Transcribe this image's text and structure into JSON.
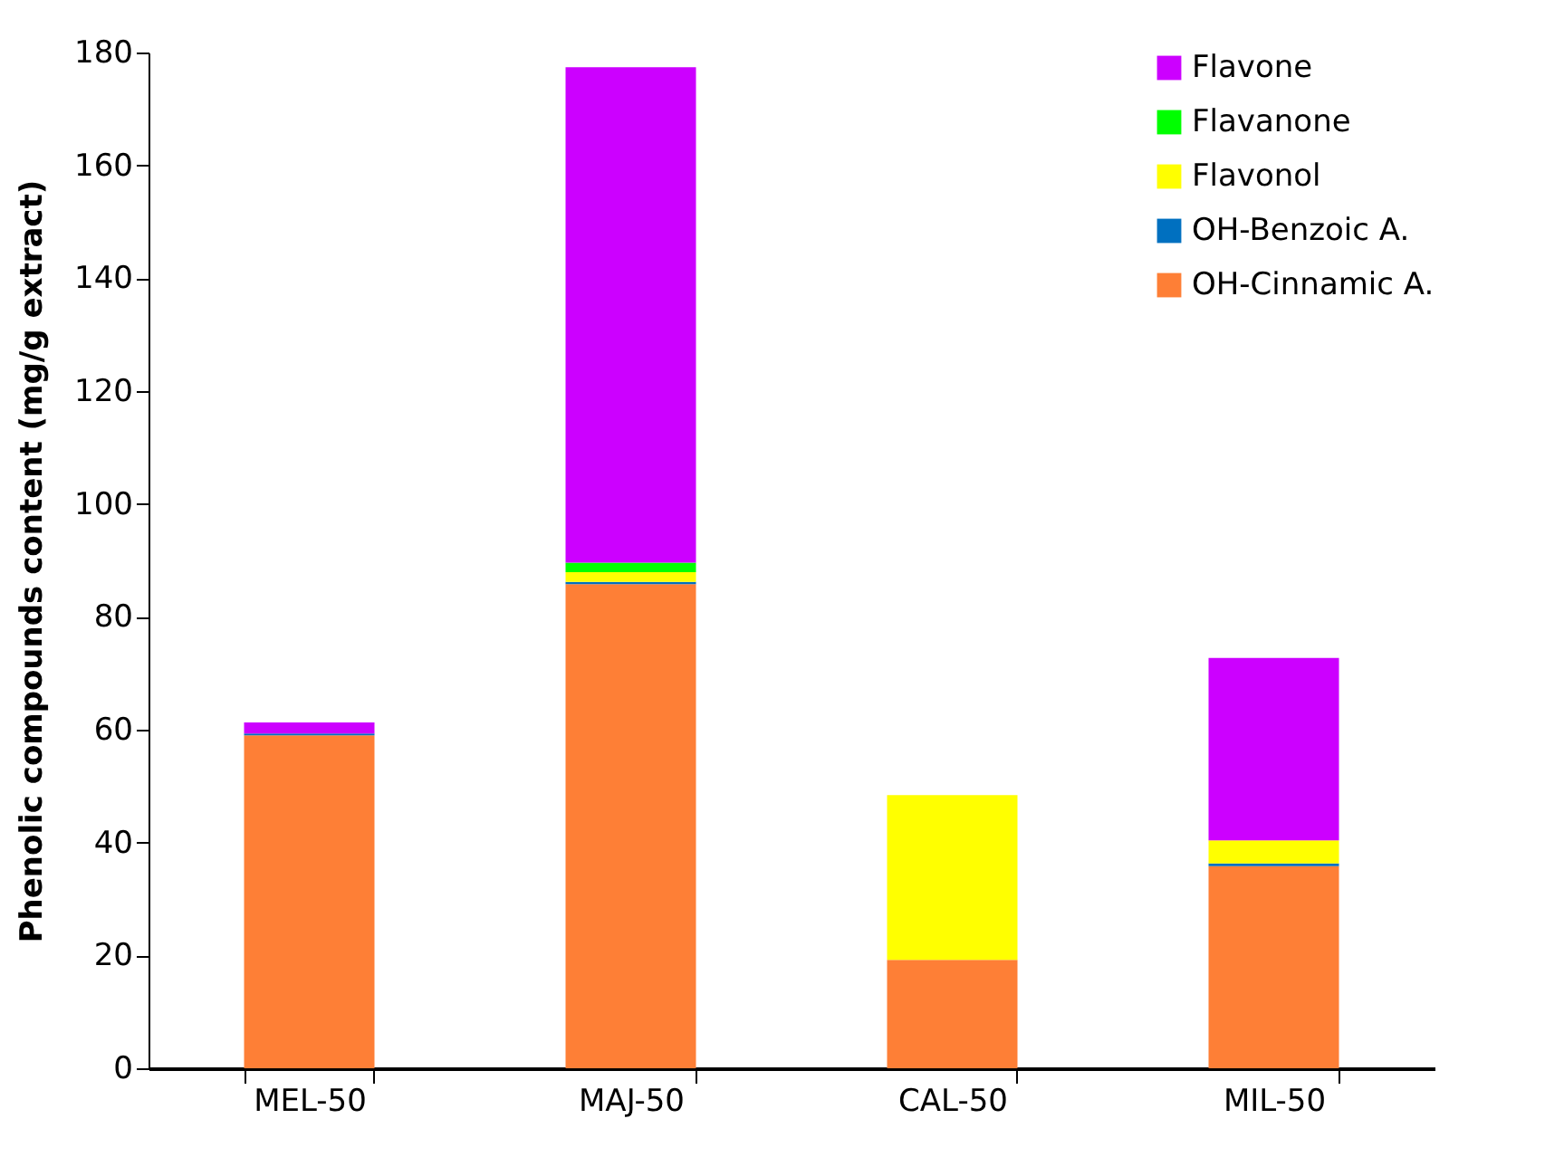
{
  "chart_data": {
    "type": "bar",
    "stacked": true,
    "ylabel": "Phenolic compounds content (mg/g extract)",
    "categories": [
      "MEL-50",
      "MAJ-50",
      "CAL-50",
      "MIL-50"
    ],
    "series": [
      {
        "name": "OH-Cinnamic A.",
        "color": "#fe7f36",
        "values": [
          59,
          85.8,
          19.2,
          35.8
        ]
      },
      {
        "name": "OH-Benzoic A.",
        "color": "#0070c0",
        "values": [
          0.3,
          0.4,
          0,
          0.5
        ]
      },
      {
        "name": "Flavonol",
        "color": "#ffff00",
        "values": [
          0,
          1.7,
          29.2,
          4.1
        ]
      },
      {
        "name": "Flavanone",
        "color": "#00ff00",
        "values": [
          0,
          1.7,
          0,
          0
        ]
      },
      {
        "name": "Flavone",
        "color": "#cc00ff",
        "values": [
          2,
          87.8,
          0,
          32.3
        ]
      }
    ],
    "ylim": [
      0,
      180
    ],
    "yticks": [
      0,
      20,
      40,
      60,
      80,
      100,
      120,
      140,
      160,
      180
    ],
    "grid": false,
    "legend": "top right"
  }
}
